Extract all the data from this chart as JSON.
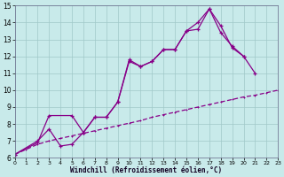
{
  "background_color": "#c8eaea",
  "grid_color": "#a0c8c8",
  "line_color": "#880088",
  "xlabel": "Windchill (Refroidissement éolien,°C)",
  "xlim": [
    0,
    23
  ],
  "ylim": [
    6,
    15
  ],
  "xticks": [
    0,
    1,
    2,
    3,
    4,
    5,
    6,
    7,
    8,
    9,
    10,
    11,
    12,
    13,
    14,
    15,
    16,
    17,
    18,
    19,
    20,
    21,
    22,
    23
  ],
  "yticks": [
    6,
    7,
    8,
    9,
    10,
    11,
    12,
    13,
    14,
    15
  ],
  "line1": {
    "x": [
      0,
      2,
      3,
      5,
      6,
      7,
      8,
      9,
      10,
      11,
      12,
      13,
      14,
      15,
      16,
      17,
      18,
      19,
      20
    ],
    "y": [
      6.2,
      6.9,
      8.5,
      8.5,
      7.5,
      8.4,
      8.4,
      9.3,
      11.8,
      11.4,
      11.7,
      12.4,
      12.4,
      13.5,
      13.6,
      14.8,
      13.4,
      12.6,
      12.0
    ]
  },
  "line2": {
    "x": [
      0,
      2,
      3,
      4,
      5,
      6,
      7,
      8,
      9,
      10,
      11,
      12,
      13,
      14,
      15,
      16,
      17,
      18,
      19,
      20,
      21
    ],
    "y": [
      6.2,
      7.0,
      7.7,
      6.7,
      6.8,
      7.5,
      8.4,
      8.4,
      9.3,
      11.7,
      11.4,
      11.7,
      12.4,
      12.4,
      13.5,
      14.0,
      14.8,
      13.8,
      12.5,
      12.0,
      11.0
    ]
  },
  "line3": {
    "x": [
      0,
      1,
      2,
      3,
      4,
      5,
      6,
      7,
      8,
      9,
      10,
      11,
      12,
      13,
      14,
      15,
      16,
      17,
      18,
      19,
      20,
      21,
      22,
      23
    ],
    "y": [
      6.2,
      6.5,
      6.8,
      7.0,
      7.15,
      7.3,
      7.45,
      7.6,
      7.75,
      7.9,
      8.05,
      8.2,
      8.4,
      8.55,
      8.7,
      8.85,
      9.0,
      9.15,
      9.3,
      9.45,
      9.6,
      9.7,
      9.85,
      10.0
    ]
  }
}
